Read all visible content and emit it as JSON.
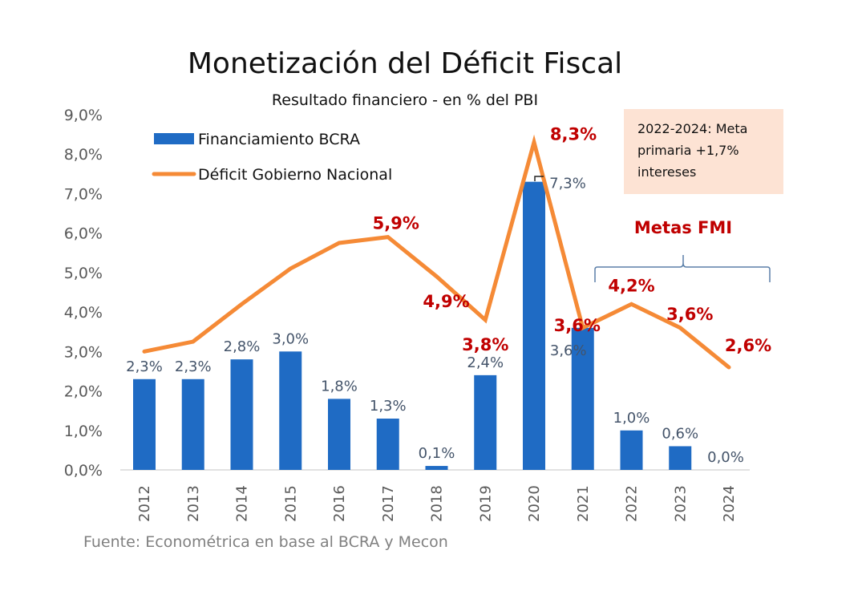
{
  "chart_data": {
    "type": "bar",
    "title": "Monetización del Déficit Fiscal",
    "subtitle": "Resultado financiero - en % del PBI",
    "xlabel": "",
    "ylabel": "",
    "ylim": [
      0,
      9
    ],
    "yticks": [
      "0,0%",
      "1,0%",
      "2,0%",
      "3,0%",
      "4,0%",
      "5,0%",
      "6,0%",
      "7,0%",
      "8,0%",
      "9,0%"
    ],
    "grid": false,
    "legend_position": "top-left",
    "categories": [
      "2012",
      "2013",
      "2014",
      "2015",
      "2016",
      "2017",
      "2018",
      "2019",
      "2020",
      "2021",
      "2022",
      "2023",
      "2024"
    ],
    "series": [
      {
        "name": "Financiamiento BCRA",
        "type": "bar",
        "color": "#1f6bc4",
        "values": [
          2.3,
          2.3,
          2.8,
          3.0,
          1.8,
          1.3,
          0.1,
          2.4,
          7.3,
          3.6,
          1.0,
          0.6,
          0.0
        ],
        "labels": [
          "2,3%",
          "2,3%",
          "2,8%",
          "3,0%",
          "1,8%",
          "1,3%",
          "0,1%",
          "2,4%",
          "7,3%",
          "3,6%",
          "1,0%",
          "0,6%",
          "0,0%"
        ]
      },
      {
        "name": "Déficit Gobierno Nacional",
        "type": "line",
        "color": "#f58a36",
        "values": [
          3.0,
          3.25,
          4.2,
          5.1,
          5.75,
          5.9,
          4.9,
          3.8,
          8.3,
          3.6,
          4.2,
          3.6,
          2.6
        ],
        "labels": [
          "",
          "",
          "",
          "",
          "",
          "5,9%",
          "4,9%",
          "3,8%",
          "8,3%",
          "3,6%",
          "4,2%",
          "3,6%",
          "2,6%"
        ]
      }
    ],
    "annotations": {
      "note_box": [
        "2022-2024: Meta",
        "primaria +1,7%",
        "intereses"
      ],
      "note_box_color": "#fde3d4",
      "bracket_label": "Metas FMI",
      "bracket_range": [
        "2021",
        "2024"
      ],
      "bracket_color": "#5b7fa8",
      "label_color": "#c00000",
      "bar_label_color": "#44546a"
    },
    "source": "Fuente: Econométrica en base al BCRA y Mecon"
  }
}
